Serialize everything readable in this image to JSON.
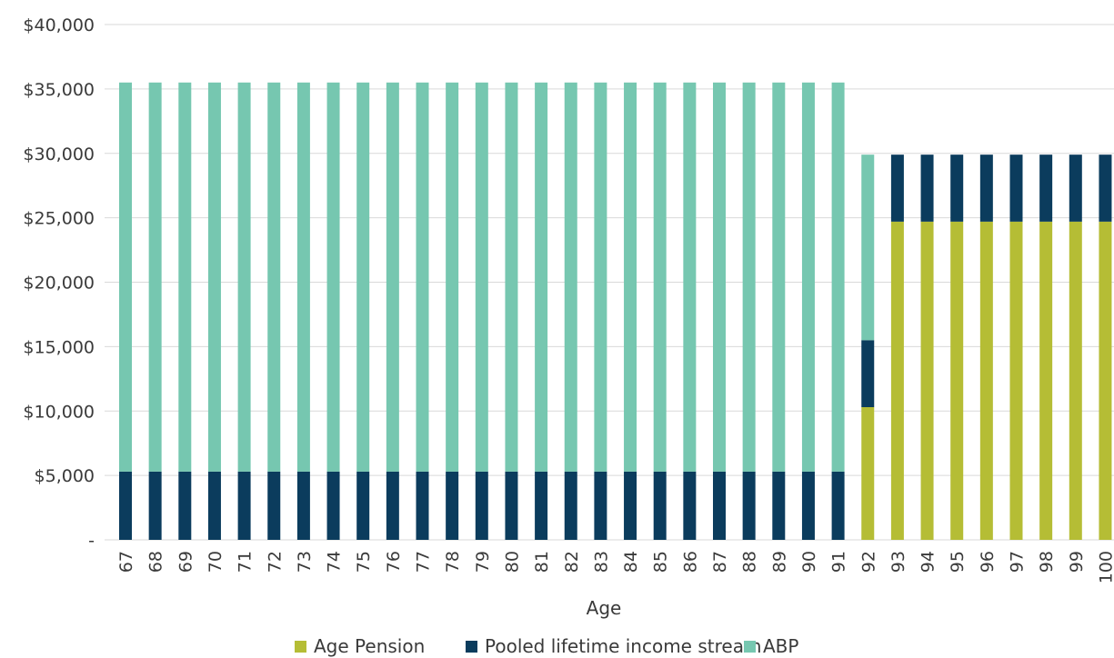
{
  "chart_data": {
    "type": "bar",
    "stacked": true,
    "xlabel": "Age",
    "ylabel": "",
    "ylim": [
      0,
      40000
    ],
    "y_ticks": [
      0,
      5000,
      10000,
      15000,
      20000,
      25000,
      30000,
      35000,
      40000
    ],
    "y_tick_labels": [
      "-",
      "$5,000",
      "$10,000",
      "$15,000",
      "$20,000",
      "$25,000",
      "$30,000",
      "$35,000",
      "$40,000"
    ],
    "grid": "horizontal",
    "legend_position": "bottom",
    "categories": [
      "67",
      "68",
      "69",
      "70",
      "71",
      "72",
      "73",
      "74",
      "75",
      "76",
      "77",
      "78",
      "79",
      "80",
      "81",
      "82",
      "83",
      "84",
      "85",
      "86",
      "87",
      "88",
      "89",
      "90",
      "91",
      "92",
      "93",
      "94",
      "95",
      "96",
      "97",
      "98",
      "99",
      "100"
    ],
    "series": [
      {
        "name": "Age Pension",
        "color": "#b5bd35",
        "values": [
          0,
          0,
          0,
          0,
          0,
          0,
          0,
          0,
          0,
          0,
          0,
          0,
          0,
          0,
          0,
          0,
          0,
          0,
          0,
          0,
          0,
          0,
          0,
          0,
          0,
          10300,
          24700,
          24700,
          24700,
          24700,
          24700,
          24700,
          24700,
          24700
        ]
      },
      {
        "name": "Pooled lifetime income stream",
        "color": "#0b3c5d",
        "values": [
          5300,
          5300,
          5300,
          5300,
          5300,
          5300,
          5300,
          5300,
          5300,
          5300,
          5300,
          5300,
          5300,
          5300,
          5300,
          5300,
          5300,
          5300,
          5300,
          5300,
          5300,
          5300,
          5300,
          5300,
          5300,
          5200,
          5200,
          5200,
          5200,
          5200,
          5200,
          5200,
          5200,
          5200
        ]
      },
      {
        "name": "ABP",
        "color": "#76c7b0",
        "values": [
          30200,
          30200,
          30200,
          30200,
          30200,
          30200,
          30200,
          30200,
          30200,
          30200,
          30200,
          30200,
          30200,
          30200,
          30200,
          30200,
          30200,
          30200,
          30200,
          30200,
          30200,
          30200,
          30200,
          30200,
          30200,
          14400,
          0,
          0,
          0,
          0,
          0,
          0,
          0,
          0
        ]
      }
    ]
  },
  "colors": {
    "grid": "#d9d9d9",
    "text": "#3a3a3a"
  }
}
